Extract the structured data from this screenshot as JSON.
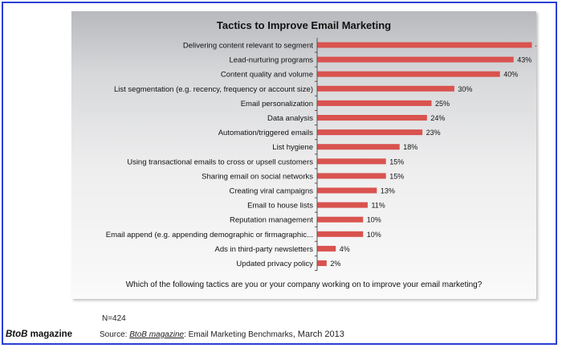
{
  "brand": {
    "part1": "BtoB",
    "part2": " magazine"
  },
  "footer": {
    "n_label": "N=424",
    "source_prefix": "Source: ",
    "source_magazine": "BtoB magazine",
    "source_middle": ": Email Marketing Benchmarks",
    "source_date": ", March 2013"
  },
  "colors": {
    "bar": "#d9534f",
    "frame": "#2b3fd6"
  },
  "chart_data": {
    "type": "bar",
    "orientation": "horizontal",
    "title": "Tactics to Improve Email Marketing",
    "xlabel": "Which of the following tactics are you or your company working on to improve your email marketing?",
    "ylabel": "",
    "xlim": [
      0,
      50
    ],
    "grid": false,
    "categories": [
      "Delivering content relevant to segment",
      "Lead-nurturing programs",
      "Content quality and volume",
      "List segmentation (e.g. recency, frequency or account size)",
      "Email personalization",
      "Data analysis",
      "Automation/triggered emails",
      "List hygiene",
      "Using transactional emails to cross or upsell customers",
      "Sharing email on social networks",
      "Creating viral campaigns",
      "Email to house lists",
      "Reputation management",
      "Email append (e.g. appending demographic or firmagraphic...",
      "Ads in third-party newsletters",
      "Updated privacy policy"
    ],
    "values": [
      47,
      43,
      40,
      30,
      25,
      24,
      23,
      18,
      15,
      15,
      13,
      11,
      10,
      10,
      4,
      2
    ],
    "value_suffix": "%"
  }
}
